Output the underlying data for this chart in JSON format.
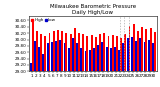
{
  "title": "Milwaukee Barometric Pressure\nDaily High/Low",
  "title_fontsize": 4.0,
  "background_color": "#ffffff",
  "high_color": "#ff0000",
  "low_color": "#0000cc",
  "ylim": [
    29.0,
    30.75
  ],
  "yticks": [
    29.0,
    29.2,
    29.4,
    29.6,
    29.8,
    30.0,
    30.2,
    30.4,
    30.6
  ],
  "categories": [
    "1",
    "2",
    "3",
    "4",
    "5",
    "6",
    "7",
    "8",
    "9",
    "10",
    "11",
    "12",
    "13",
    "14",
    "15",
    "16",
    "17",
    "18",
    "19",
    "20",
    "21",
    "22",
    "23",
    "24",
    "25",
    "26",
    "27",
    "28",
    "29",
    "30"
  ],
  "high_values": [
    30.55,
    30.28,
    30.18,
    30.12,
    30.22,
    30.28,
    30.3,
    30.28,
    30.22,
    30.18,
    30.35,
    30.22,
    30.18,
    30.12,
    30.15,
    30.08,
    30.18,
    30.22,
    30.12,
    30.15,
    30.1,
    30.05,
    30.18,
    30.42,
    30.48,
    30.28,
    30.38,
    30.32,
    30.35,
    30.25
  ],
  "low_values": [
    29.25,
    29.95,
    29.75,
    29.55,
    29.88,
    29.92,
    29.95,
    30.0,
    29.88,
    29.72,
    30.05,
    29.88,
    29.72,
    29.65,
    29.68,
    29.72,
    29.82,
    29.92,
    29.75,
    29.72,
    29.75,
    29.68,
    29.88,
    30.05,
    30.08,
    29.95,
    30.05,
    29.92,
    29.98,
    29.88
  ],
  "dotted_cols": [
    21,
    22,
    23
  ],
  "legend_high": "High",
  "legend_low": "Low",
  "xtick_fontsize": 3.0,
  "ytick_fontsize": 3.0,
  "bar_width": 0.45
}
